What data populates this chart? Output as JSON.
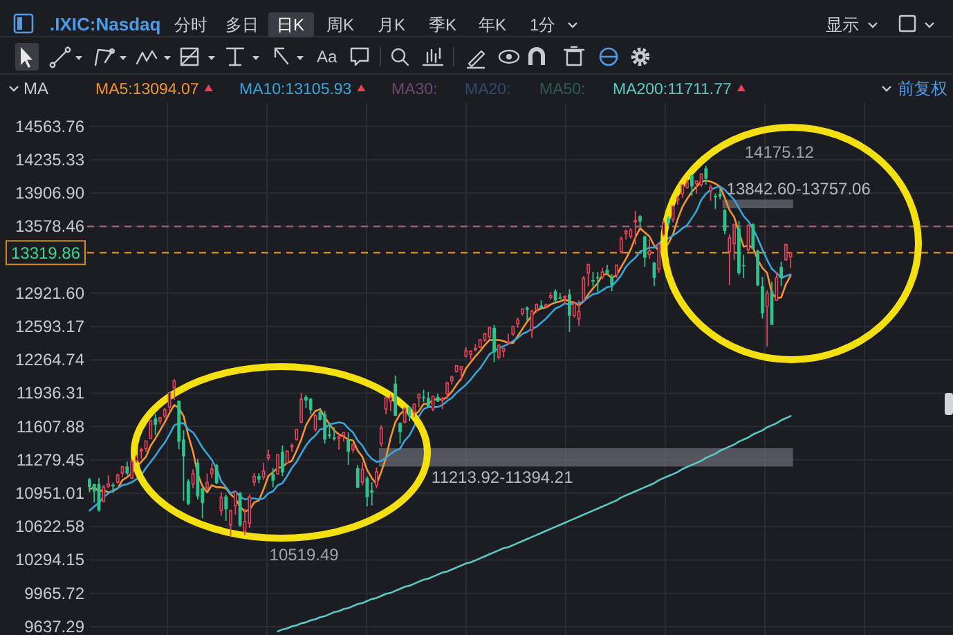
{
  "chart_data": {
    "type": "candlestick",
    "title": ".IXIC:Nasdaq",
    "categories": [
      null,
      null,
      null,
      null,
      null,
      null,
      null,
      null,
      null,
      null,
      null,
      null,
      null,
      null,
      null,
      null,
      null,
      null,
      null,
      null,
      null,
      null,
      null,
      null,
      null,
      null,
      null,
      null,
      null,
      null,
      null,
      null,
      null,
      null,
      null,
      null,
      null,
      null,
      null,
      null,
      null,
      null,
      null,
      null,
      null,
      null,
      null,
      null,
      null,
      null,
      null,
      null,
      null,
      null,
      null,
      null,
      null,
      null,
      null,
      null,
      null,
      null,
      null,
      null,
      null,
      null,
      null,
      null,
      null,
      null,
      null,
      null,
      null,
      null,
      null,
      null,
      null,
      null,
      null,
      null,
      null,
      null,
      null,
      null,
      null,
      null,
      null,
      null,
      null,
      null,
      null,
      null,
      null,
      null,
      null,
      null,
      null,
      null,
      null,
      null,
      null,
      null,
      null,
      null,
      null,
      null,
      null,
      null,
      null,
      null,
      null,
      null,
      null,
      null,
      null,
      null,
      null,
      null,
      null,
      null,
      null,
      null,
      null,
      null,
      null,
      null,
      null,
      null,
      null,
      null,
      null,
      null,
      null,
      null,
      null,
      null,
      null,
      null,
      null,
      null,
      null,
      null,
      null,
      null,
      null,
      null,
      null,
      null,
      null,
      null
    ],
    "ohlc": [
      [
        11090,
        11102,
        10960,
        11011
      ],
      [
        11040,
        11045,
        10860,
        10968
      ],
      [
        11040,
        11101,
        10770,
        10783
      ],
      [
        10870,
        11030,
        10860,
        11012
      ],
      [
        11020,
        11128,
        11000,
        11043
      ],
      [
        11035,
        11055,
        10955,
        11019
      ],
      [
        11060,
        11145,
        11045,
        11130
      ],
      [
        11150,
        11220,
        11110,
        11211
      ],
      [
        11215,
        11262,
        11130,
        11146
      ],
      [
        11100,
        11280,
        11090,
        11265
      ],
      [
        11270,
        11330,
        11250,
        11312
      ],
      [
        11375,
        11400,
        11290,
        11380
      ],
      [
        11390,
        11468,
        11360,
        11466
      ],
      [
        11490,
        11670,
        11490,
        11665
      ],
      [
        11690,
        11730,
        11525,
        11625
      ],
      [
        11660,
        11700,
        11630,
        11696
      ],
      [
        11710,
        11790,
        11690,
        11775
      ],
      [
        11800,
        11945,
        11760,
        11940
      ],
      [
        11990,
        12074,
        11870,
        12056
      ],
      [
        11861,
        11861,
        11386,
        11458
      ],
      [
        11481,
        11574,
        10876,
        11313
      ],
      [
        11069,
        11090,
        10832,
        10848
      ],
      [
        11044,
        11190,
        11000,
        11142
      ],
      [
        11250,
        11290,
        10890,
        10920
      ],
      [
        11000,
        11000,
        10705,
        10854
      ],
      [
        11003,
        11145,
        10980,
        11057
      ],
      [
        11145,
        11245,
        11100,
        11190
      ],
      [
        11230,
        11240,
        11040,
        11050
      ],
      [
        10780,
        10960,
        10730,
        10910
      ],
      [
        10920,
        10940,
        10680,
        10793
      ],
      [
        10640,
        10790,
        10519.49,
        10779
      ],
      [
        10830,
        10970,
        10740,
        10964
      ],
      [
        10950,
        10965,
        10620,
        10633
      ],
      [
        10575,
        10800,
        10540,
        10672
      ],
      [
        10655,
        10940,
        10610,
        10914
      ],
      [
        11060,
        11150,
        11020,
        11118
      ],
      [
        11120,
        11150,
        11050,
        11085
      ],
      [
        11110,
        11250,
        11080,
        11168
      ],
      [
        11300,
        11380,
        11270,
        11327
      ],
      [
        11140,
        11200,
        11010,
        11075
      ],
      [
        11140,
        11332,
        11135,
        11332
      ],
      [
        11360,
        11420,
        11120,
        11155
      ],
      [
        11250,
        11370,
        11240,
        11365
      ],
      [
        11420,
        11440,
        11360,
        11421
      ],
      [
        11480,
        11580,
        11470,
        11580
      ],
      [
        11650,
        11940,
        11640,
        11876
      ],
      [
        11900,
        11920,
        11790,
        11864
      ],
      [
        11880,
        11890,
        11730,
        11769
      ],
      [
        11580,
        11730,
        11560,
        11714
      ],
      [
        11750,
        11790,
        11670,
        11672
      ],
      [
        11730,
        11760,
        11440,
        11479
      ],
      [
        11530,
        11640,
        11490,
        11516
      ],
      [
        11500,
        11600,
        11470,
        11485
      ],
      [
        11490,
        11530,
        11380,
        11506
      ],
      [
        11520,
        11550,
        11460,
        11548
      ],
      [
        11480,
        11550,
        11230,
        11359
      ],
      [
        11380,
        11440,
        11350,
        11431
      ],
      [
        11200,
        11230,
        11000,
        11005
      ],
      [
        11060,
        11260,
        11030,
        11186
      ],
      [
        11100,
        11120,
        10822,
        10912
      ],
      [
        10980,
        11060,
        10830,
        10958
      ],
      [
        11030,
        11205,
        11000,
        11161
      ],
      [
        11440,
        11620,
        11410,
        11591
      ],
      [
        11780,
        11900,
        11730,
        11891
      ],
      [
        11860,
        11920,
        11760,
        11895
      ],
      [
        12030,
        12110,
        11710,
        11714
      ],
      [
        11640,
        11650,
        11440,
        11554
      ],
      [
        11650,
        11800,
        11640,
        11786
      ],
      [
        11800,
        11810,
        11660,
        11710
      ],
      [
        11750,
        11830,
        11700,
        11829
      ],
      [
        11890,
        11930,
        11800,
        11924
      ],
      [
        11900,
        11970,
        11850,
        11899
      ],
      [
        11890,
        11950,
        11800,
        11802
      ],
      [
        11780,
        11910,
        11760,
        11905
      ],
      [
        11900,
        11930,
        11850,
        11855
      ],
      [
        11880,
        11900,
        11780,
        11881
      ],
      [
        11930,
        12050,
        11880,
        12037
      ],
      [
        12060,
        12110,
        12020,
        12094
      ],
      [
        12150,
        12210,
        12140,
        12206
      ],
      [
        12170,
        12200,
        12060,
        12199
      ],
      [
        12300,
        12390,
        12290,
        12355
      ],
      [
        12320,
        12360,
        12270,
        12349
      ],
      [
        12370,
        12420,
        12350,
        12377
      ],
      [
        12390,
        12465,
        12380,
        12464
      ],
      [
        12460,
        12530,
        12440,
        12520
      ],
      [
        12490,
        12590,
        12460,
        12583
      ],
      [
        12580,
        12610,
        12240,
        12339
      ],
      [
        12290,
        12420,
        12270,
        12406
      ],
      [
        12350,
        12380,
        12290,
        12378
      ],
      [
        12430,
        12520,
        12420,
        12440
      ],
      [
        12520,
        12600,
        12500,
        12595
      ],
      [
        12620,
        12680,
        12580,
        12658
      ],
      [
        12720,
        12770,
        12700,
        12765
      ],
      [
        12780,
        12790,
        12650,
        12756
      ],
      [
        12560,
        12760,
        12480,
        12743
      ],
      [
        12760,
        12820,
        12730,
        12808
      ],
      [
        12800,
        12850,
        12770,
        12771
      ],
      [
        12790,
        12820,
        12770,
        12805
      ],
      [
        12880,
        12930,
        12860,
        12899
      ],
      [
        12940,
        12960,
        12820,
        12850
      ],
      [
        12880,
        12920,
        12860,
        12870
      ],
      [
        12880,
        12900,
        12810,
        12888
      ],
      [
        12910,
        12960,
        12540,
        12698
      ],
      [
        12700,
        12830,
        12680,
        12819
      ],
      [
        12670,
        12850,
        12600,
        12741
      ],
      [
        12850,
        13090,
        12840,
        13067
      ],
      [
        13120,
        13210,
        12990,
        13202
      ],
      [
        13050,
        13130,
        12990,
        13036
      ],
      [
        13080,
        13130,
        12930,
        13072
      ],
      [
        13080,
        13170,
        13060,
        13129
      ],
      [
        13150,
        13200,
        13110,
        13113
      ],
      [
        13080,
        13110,
        12940,
        12999
      ],
      [
        13100,
        13200,
        13070,
        13197
      ],
      [
        13330,
        13480,
        13310,
        13457
      ],
      [
        13510,
        13550,
        13450,
        13531
      ],
      [
        13480,
        13560,
        13460,
        13543
      ],
      [
        13630,
        13730,
        13400,
        13636
      ],
      [
        13680,
        13690,
        13580,
        13626
      ],
      [
        13480,
        13490,
        13180,
        13271
      ],
      [
        13300,
        13450,
        13260,
        13337
      ],
      [
        13220,
        13230,
        12990,
        13071
      ],
      [
        13160,
        13420,
        13120,
        13403
      ],
      [
        13500,
        13640,
        13480,
        13613
      ],
      [
        13660,
        13680,
        13580,
        13611
      ],
      [
        13650,
        13780,
        13620,
        13778
      ],
      [
        13840,
        13880,
        13790,
        13856
      ],
      [
        13900,
        13990,
        13860,
        13988
      ],
      [
        13960,
        14040,
        13950,
        14008
      ],
      [
        14080,
        14090,
        13880,
        13973
      ],
      [
        14000,
        14030,
        13900,
        14026
      ],
      [
        13990,
        14100,
        13970,
        14095
      ],
      [
        14150,
        14175.12,
        13990,
        14048
      ],
      [
        13930,
        13990,
        13830,
        13965
      ],
      [
        13880,
        13900,
        13750,
        13865
      ],
      [
        13900,
        13960,
        13845,
        13874
      ],
      [
        13740,
        13750,
        13500,
        13533
      ],
      [
        13330,
        13500,
        13000,
        13465
      ],
      [
        13410,
        13600,
        13250,
        13598
      ],
      [
        13560,
        13630,
        13100,
        13119
      ],
      [
        13200,
        13300,
        13070,
        13192
      ],
      [
        13350,
        13600,
        13320,
        13589
      ],
      [
        13600,
        13610,
        13350,
        13359
      ],
      [
        13340,
        13350,
        12990,
        12998
      ],
      [
        12990,
        13080,
        12670,
        12723
      ],
      [
        12790,
        12950,
        12397,
        12920
      ],
      [
        12940,
        13030,
        12609,
        12609
      ],
      [
        12850,
        13130,
        12850,
        13074
      ],
      [
        13180,
        13230,
        12990,
        13069
      ],
      [
        13250,
        13410,
        13240,
        13399
      ],
      [
        13280,
        13320,
        13170,
        13319.86
      ]
    ],
    "colors": [
      "#2ec28e",
      "#2ec28e",
      "#2ec28e",
      "#e8435a",
      "#e8435a",
      "#2ec28e",
      "#e8435a",
      "#e8435a",
      "#2ec28e",
      "#e8435a",
      "#e8435a",
      "#e8435a",
      "#e8435a",
      "#e8435a",
      "#2ec28e",
      "#e8435a",
      "#e8435a",
      "#e8435a",
      "#e8435a",
      "#2ec28e",
      "#2ec28e",
      "#2ec28e",
      "#e8435a",
      "#2ec28e",
      "#2ec28e",
      "#e8435a",
      "#e8435a",
      "#2ec28e",
      "#e8435a",
      "#2ec28e",
      "#e8435a",
      "#e8435a",
      "#2ec28e",
      "#e8435a",
      "#e8435a",
      "#e8435a",
      "#2ec28e",
      "#e8435a",
      "#e8435a",
      "#2ec28e",
      "#e8435a",
      "#2ec28e",
      "#e8435a",
      "#e8435a",
      "#e8435a",
      "#e8435a",
      "#2ec28e",
      "#2ec28e",
      "#e8435a",
      "#2ec28e",
      "#2ec28e",
      "#2ec28e",
      "#2ec28e",
      "#e8435a",
      "#e8435a",
      "#2ec28e",
      "#e8435a",
      "#2ec28e",
      "#e8435a",
      "#2ec28e",
      "#2ec28e",
      "#e8435a",
      "#e8435a",
      "#e8435a",
      "#e8435a",
      "#2ec28e",
      "#2ec28e",
      "#e8435a",
      "#2ec28e",
      "#e8435a",
      "#e8435a",
      "#2ec28e",
      "#2ec28e",
      "#e8435a",
      "#2ec28e",
      "#e8435a",
      "#e8435a",
      "#e8435a",
      "#e8435a",
      "#e8435a",
      "#e8435a",
      "#e8435a",
      "#e8435a",
      "#e8435a",
      "#e8435a",
      "#e8435a",
      "#2ec28e",
      "#e8435a",
      "#e8435a",
      "#e8435a",
      "#e8435a",
      "#e8435a",
      "#e8435a",
      "#2ec28e",
      "#e8435a",
      "#e8435a",
      "#2ec28e",
      "#e8435a",
      "#e8435a",
      "#2ec28e",
      "#2ec28e",
      "#e8435a",
      "#2ec28e",
      "#e8435a",
      "#e8435a",
      "#e8435a",
      "#e8435a",
      "#2ec28e",
      "#2ec28e",
      "#e8435a",
      "#2ec28e",
      "#2ec28e",
      "#e8435a",
      "#e8435a",
      "#e8435a",
      "#e8435a",
      "#e8435a",
      "#2ec28e",
      "#2ec28e",
      "#e8435a",
      "#2ec28e",
      "#e8435a",
      "#e8435a",
      "#2ec28e",
      "#e8435a",
      "#e8435a",
      "#e8435a",
      "#e8435a",
      "#2ec28e",
      "#e8435a",
      "#e8435a",
      "#2ec28e",
      "#e8435a",
      "#2ec28e",
      "#2ec28e",
      "#2ec28e",
      "#e8435a",
      "#e8435a",
      "#2ec28e",
      "#2ec28e",
      "#e8435a",
      "#2ec28e",
      "#2ec28e",
      "#2ec28e",
      "#e8435a",
      "#2ec28e",
      "#e8435a",
      "#2ec28e",
      "#e8435a",
      "#e8435a"
    ],
    "series": [
      {
        "name": "MA5:13094.07",
        "color": "#f0952f",
        "type": "line",
        "values": [
          10990,
          11010,
          10970,
          10980,
          10960,
          10970,
          11000,
          11080,
          11110,
          11150,
          11210,
          11260,
          11310,
          11420,
          11490,
          11570,
          11650,
          11740,
          11820,
          11790,
          11710,
          11520,
          11360,
          11140,
          11020,
          10960,
          11030,
          11010,
          11010,
          11000,
          10940,
          10900,
          10820,
          10770,
          10790,
          10860,
          10880,
          10990,
          11120,
          11160,
          11200,
          11210,
          11250,
          11270,
          11370,
          11480,
          11620,
          11700,
          11760,
          11780,
          11700,
          11630,
          11570,
          11530,
          11510,
          11480,
          11470,
          11370,
          11310,
          11180,
          11100,
          11040,
          11160,
          11300,
          11500,
          11650,
          11730,
          11770,
          11730,
          11720,
          11760,
          11830,
          11830,
          11870,
          11880,
          11870,
          11900,
          11950,
          12020,
          12080,
          12180,
          12240,
          12300,
          12350,
          12410,
          12460,
          12460,
          12460,
          12450,
          12430,
          12430,
          12500,
          12570,
          12640,
          12700,
          12750,
          12770,
          12780,
          12810,
          12830,
          12840,
          12860,
          12840,
          12830,
          12800,
          12840,
          12910,
          12970,
          13020,
          13100,
          13110,
          13070,
          13100,
          13180,
          13260,
          13350,
          13470,
          13560,
          13520,
          13480,
          13390,
          13340,
          13340,
          13410,
          13500,
          13650,
          13770,
          13850,
          13920,
          13970,
          14020,
          14030,
          14020,
          14000,
          13970,
          13860,
          13740,
          13670,
          13520,
          13380,
          13390,
          13370,
          13250,
          13170,
          13120,
          12920,
          12870,
          12880,
          13010,
          13094.07
        ]
      },
      {
        "name": "MA10:13105.93",
        "color": "#38a6dc",
        "type": "line",
        "values": [
          10780,
          10820,
          10860,
          10910,
          10950,
          10980,
          11000,
          11030,
          11040,
          11060,
          11090,
          11130,
          11200,
          11260,
          11320,
          11390,
          11450,
          11530,
          11620,
          11640,
          11640,
          11580,
          11550,
          11480,
          11400,
          11340,
          11280,
          11190,
          11070,
          11010,
          10950,
          10970,
          10920,
          10890,
          10900,
          10900,
          10890,
          10900,
          10950,
          10970,
          11030,
          11050,
          11120,
          11200,
          11260,
          11340,
          11420,
          11480,
          11520,
          11580,
          11590,
          11630,
          11640,
          11650,
          11640,
          11590,
          11550,
          11470,
          11420,
          11340,
          11290,
          11260,
          11270,
          11300,
          11340,
          11370,
          11390,
          11470,
          11520,
          11610,
          11710,
          11780,
          11800,
          11800,
          11800,
          11820,
          11860,
          11890,
          11940,
          11980,
          12020,
          12070,
          12130,
          12180,
          12250,
          12320,
          12350,
          12380,
          12400,
          12420,
          12450,
          12480,
          12520,
          12540,
          12570,
          12590,
          12630,
          12670,
          12720,
          12770,
          12790,
          12820,
          12810,
          12820,
          12820,
          12840,
          12880,
          12910,
          12920,
          12950,
          12980,
          12990,
          13040,
          13100,
          13180,
          13230,
          13270,
          13330,
          13350,
          13370,
          13370,
          13410,
          13450,
          13460,
          13490,
          13520,
          13560,
          13590,
          13660,
          13730,
          13840,
          13900,
          13940,
          13960,
          13970,
          13940,
          13890,
          13840,
          13760,
          13680,
          13630,
          13560,
          13460,
          13350,
          13250,
          13160,
          13120,
          13070,
          13090,
          13105.93
        ]
      },
      {
        "name": "MA200:11711.77",
        "color": "#5cc9c4",
        "type": "line",
        "values": [
          null,
          null,
          null,
          null,
          null,
          null,
          null,
          null,
          null,
          null,
          null,
          null,
          null,
          null,
          null,
          null,
          null,
          null,
          null,
          null,
          null,
          null,
          null,
          null,
          null,
          null,
          null,
          null,
          null,
          null,
          null,
          null,
          null,
          null,
          null,
          null,
          null,
          null,
          null,
          null,
          9590,
          9610,
          9620,
          9640,
          9650,
          9670,
          9680,
          9700,
          9710,
          9730,
          9740,
          9760,
          9780,
          9790,
          9810,
          9820,
          9840,
          9860,
          9870,
          9890,
          9910,
          9920,
          9940,
          9960,
          9970,
          9990,
          10010,
          10030,
          10040,
          10060,
          10080,
          10100,
          10110,
          10130,
          10150,
          10170,
          10180,
          10200,
          10220,
          10240,
          10260,
          10270,
          10290,
          10310,
          10330,
          10350,
          10370,
          10390,
          10410,
          10420,
          10440,
          10460,
          10480,
          10500,
          10520,
          10540,
          10560,
          10580,
          10600,
          10620,
          10640,
          10660,
          10680,
          10700,
          10720,
          10740,
          10760,
          10780,
          10800,
          10820,
          10840,
          10860,
          10880,
          10910,
          10930,
          10950,
          10970,
          10990,
          11010,
          11030,
          11050,
          11080,
          11100,
          11120,
          11140,
          11160,
          11190,
          11210,
          11230,
          11250,
          11270,
          11300,
          11320,
          11340,
          11370,
          11390,
          11410,
          11430,
          11460,
          11480,
          11500,
          11530,
          11550,
          11570,
          11600,
          11620,
          11640,
          11670,
          11690,
          11711.77
        ]
      }
    ],
    "ylim": [
      9555,
      14800
    ],
    "yticks": [
      14563.76,
      14235.33,
      {
        "value": 13906.9,
        "label": "13906.90"
      },
      13578.46,
      {
        "value": 12921.6,
        "label": "12921.60"
      },
      12593.17,
      12264.74,
      11936.31,
      11607.88,
      11279.45,
      10951.01,
      10622.58,
      10294.15,
      9965.72,
      9637.29
    ],
    "ref_lines": [
      {
        "axis": "y",
        "value": 13578.46,
        "color": "#a8606e",
        "line_style": "dashed"
      },
      {
        "axis": "y",
        "value": 13319.86,
        "label": "13319.86",
        "color": "#c98a2c",
        "line_style": "dashed"
      }
    ],
    "bands": [
      {
        "axis": "y",
        "from": 11213.92,
        "to": 11394.21,
        "label": "11213.92-11394.21",
        "color": "#6b6e76"
      },
      {
        "axis": "y",
        "from": 13757.06,
        "to": 13842.6,
        "label": "13842.60-13757.06",
        "color": "#6b6e76"
      }
    ],
    "annotations": [
      "14175.12",
      "10519.49",
      "MA30:",
      "MA20:",
      "MA50:",
      "分时",
      "多日",
      "日K",
      "周K",
      "月K",
      "季K",
      "年K",
      "1分",
      "显示",
      "Aa",
      "MA",
      "前复权"
    ],
    "grid": true,
    "legend": "top",
    "tick_labels": "y"
  }
}
